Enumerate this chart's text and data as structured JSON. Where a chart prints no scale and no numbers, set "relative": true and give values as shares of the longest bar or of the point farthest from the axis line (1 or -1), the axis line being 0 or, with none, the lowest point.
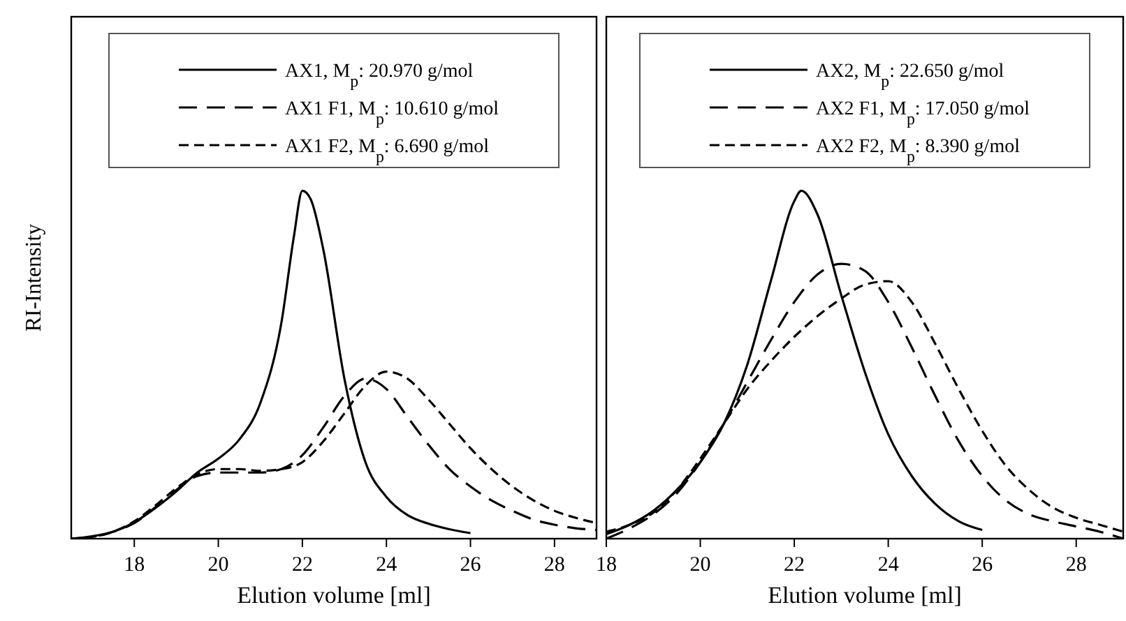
{
  "chart_data": [
    {
      "type": "line",
      "relative": true,
      "xlabel": "Elution volume [ml]",
      "ylabel": "RI-Intensity",
      "xlim": [
        16.5,
        29
      ],
      "xticks": [
        18,
        20,
        22,
        24,
        26,
        28
      ],
      "tick_labels": "x",
      "legend": "top",
      "x": [
        16.5,
        17,
        17.5,
        18,
        18.5,
        19,
        19.5,
        20,
        20.5,
        21,
        21.5,
        22,
        22.5,
        23,
        23.5,
        24,
        24.5,
        25,
        25.5,
        26,
        26.5,
        27,
        27.5,
        28,
        28.5,
        29
      ],
      "series": [
        {
          "name": "AX1, M$_{p}$: 20.970 g/mol",
          "color": "#000000",
          "line_style": "solid",
          "x": [
            16.5,
            17,
            17.5,
            18,
            18.5,
            19,
            19.5,
            20,
            20.5,
            21,
            21.5,
            21.8,
            22,
            22.2,
            22.5,
            23,
            23.5,
            24,
            24.5,
            25,
            25.5,
            26
          ],
          "values": [
            0,
            0.007,
            0.02,
            0.047,
            0.088,
            0.136,
            0.19,
            0.23,
            0.285,
            0.39,
            0.62,
            0.87,
            1,
            0.975,
            0.83,
            0.46,
            0.22,
            0.12,
            0.068,
            0.043,
            0.027,
            0.016
          ]
        },
        {
          "name": "AX1 F1, M$_{p}$: 10.610 g/mol",
          "color": "#000000",
          "line_style": "dashed",
          "values": [
            0,
            0.005,
            0.02,
            0.045,
            0.09,
            0.14,
            0.18,
            0.19,
            0.19,
            0.19,
            0.2,
            0.24,
            0.32,
            0.41,
            0.46,
            0.43,
            0.35,
            0.27,
            0.2,
            0.15,
            0.11,
            0.08,
            0.055,
            0.04,
            0.03,
            0.025
          ]
        },
        {
          "name": "AX1 F2, M$_{p}$: 6.690 g/mol",
          "color": "#000000",
          "line_style": "dashed",
          "values": [
            0,
            0.005,
            0.02,
            0.05,
            0.095,
            0.145,
            0.185,
            0.2,
            0.2,
            0.195,
            0.2,
            0.22,
            0.28,
            0.36,
            0.44,
            0.48,
            0.46,
            0.4,
            0.33,
            0.26,
            0.2,
            0.15,
            0.11,
            0.08,
            0.06,
            0.045
          ]
        }
      ]
    },
    {
      "type": "line",
      "relative": true,
      "xlabel": "Elution volume [ml]",
      "xlim": [
        18,
        29
      ],
      "xticks": [
        18,
        20,
        22,
        24,
        26,
        28
      ],
      "tick_labels": "x",
      "legend": "top",
      "x": [
        18,
        18.5,
        19,
        19.5,
        20,
        20.5,
        21,
        21.5,
        22,
        22.5,
        23,
        23.5,
        24,
        24.5,
        25,
        25.5,
        26,
        26.5,
        27,
        27.5,
        28,
        28.5,
        29
      ],
      "series": [
        {
          "name": "AX2, M$_{p}$: 22.650 g/mol",
          "color": "#000000",
          "line_style": "solid",
          "x": [
            18,
            18.5,
            19,
            19.5,
            20,
            20.5,
            21,
            21.5,
            22,
            22.15,
            22.5,
            23,
            23.5,
            24,
            24.5,
            25,
            25.5,
            26
          ],
          "values": [
            0.013,
            0.04,
            0.08,
            0.14,
            0.22,
            0.33,
            0.5,
            0.74,
            0.97,
            1,
            0.93,
            0.7,
            0.48,
            0.3,
            0.18,
            0.1,
            0.05,
            0.025
          ]
        },
        {
          "name": "AX2 F1, M$_{p}$: 17.050 g/mol",
          "color": "#000000",
          "line_style": "dashed",
          "values": [
            0,
            0.03,
            0.07,
            0.13,
            0.22,
            0.33,
            0.45,
            0.57,
            0.68,
            0.76,
            0.79,
            0.77,
            0.68,
            0.55,
            0.41,
            0.28,
            0.18,
            0.11,
            0.07,
            0.05,
            0.035,
            0.02,
            0
          ]
        },
        {
          "name": "AX2 F2, M$_{p}$: 8.390 g/mol",
          "color": "#000000",
          "line_style": "dashed",
          "values": [
            0.02,
            0.04,
            0.075,
            0.14,
            0.23,
            0.33,
            0.43,
            0.51,
            0.58,
            0.64,
            0.69,
            0.73,
            0.74,
            0.68,
            0.56,
            0.43,
            0.31,
            0.21,
            0.14,
            0.09,
            0.06,
            0.04,
            0.02
          ]
        }
      ]
    }
  ]
}
